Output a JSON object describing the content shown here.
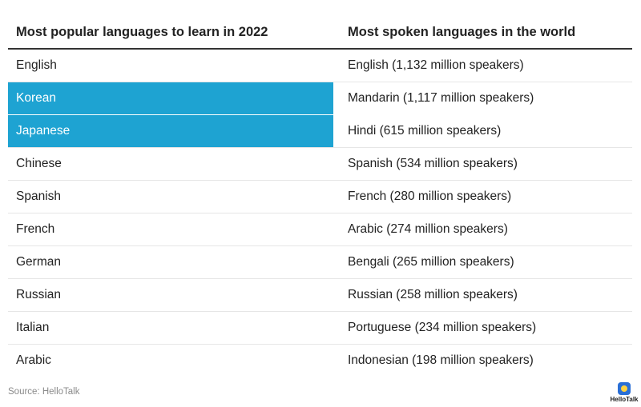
{
  "chart_data": {
    "type": "table",
    "columns": [
      "Most popular languages to learn in 2022",
      "Most spoken languages in the world"
    ],
    "rows": [
      [
        "English",
        "English (1,132 million speakers)"
      ],
      [
        "Korean",
        "Mandarin (1,117 million speakers)"
      ],
      [
        "Japanese",
        "Hindi (615 million speakers)"
      ],
      [
        "Chinese",
        "Spanish (534 million speakers)"
      ],
      [
        "Spanish",
        "French (280 million speakers)"
      ],
      [
        "French",
        "Arabic (274 million speakers)"
      ],
      [
        "German",
        "Bengali (265 million speakers)"
      ],
      [
        "Russian",
        "Russian (258 million speakers)"
      ],
      [
        "Italian",
        "Portuguese (234 million speakers)"
      ],
      [
        "Arabic",
        "Indonesian (198 million speakers)"
      ]
    ],
    "highlighted_rows_col1": [
      1,
      2
    ],
    "highlight_color": "#1ea3d2"
  },
  "source": "Source: HelloTalk",
  "logo": {
    "text": "HelloTalk",
    "icon": "hellotalk-logo-icon",
    "color": "#2a6fd6"
  }
}
